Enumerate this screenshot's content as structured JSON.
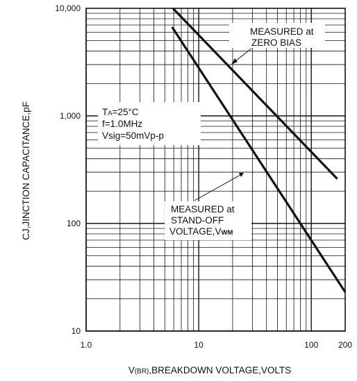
{
  "chart_data": {
    "type": "line",
    "x_scale": "log",
    "y_scale": "log",
    "xlim": [
      1,
      200
    ],
    "ylim": [
      10,
      10000
    ],
    "grid": true,
    "xlabel": {
      "prefix": "V",
      "sub": "(BR)",
      "rest": ",BREAKDOWN VOLTAGE,VOLTS"
    },
    "ylabel": "CJ,JINCTION CAPACITANCE,pF",
    "x_ticks": [
      {
        "value": 1,
        "label": "1.0"
      },
      {
        "value": 10,
        "label": "10"
      },
      {
        "value": 100,
        "label": "100"
      },
      {
        "value": 200,
        "label": "200"
      }
    ],
    "y_ticks": [
      {
        "value": 10,
        "label": "10"
      },
      {
        "value": 100,
        "label": "100"
      },
      {
        "value": 1000,
        "label": "1,000"
      },
      {
        "value": 10000,
        "label": "10,000"
      }
    ],
    "series": [
      {
        "name": "MEASURED at ZERO BIAS",
        "color": "#111111",
        "x": [
          5.9,
          170
        ],
        "y": [
          10000,
          260
        ]
      },
      {
        "name": "MEASURED at STAND-OFF VOLTAGE,VWM",
        "color": "#111111",
        "x": [
          5.8,
          200
        ],
        "y": [
          6700,
          23
        ]
      }
    ],
    "annotations": {
      "zero_bias": {
        "line1": "MEASURED at",
        "line2": "ZERO BIAS"
      },
      "standoff": {
        "line1": "MEASURED at",
        "line2": "STAND-OFF",
        "line3_main": "VOLTAGE,V",
        "line3_sub": "WM"
      },
      "conditions": {
        "ta_main": "T",
        "ta_sub": "A",
        "ta_rest": "=25°C",
        "freq": "f=1.0MHz",
        "vsig": "Vsig=50mVp-p"
      }
    }
  }
}
